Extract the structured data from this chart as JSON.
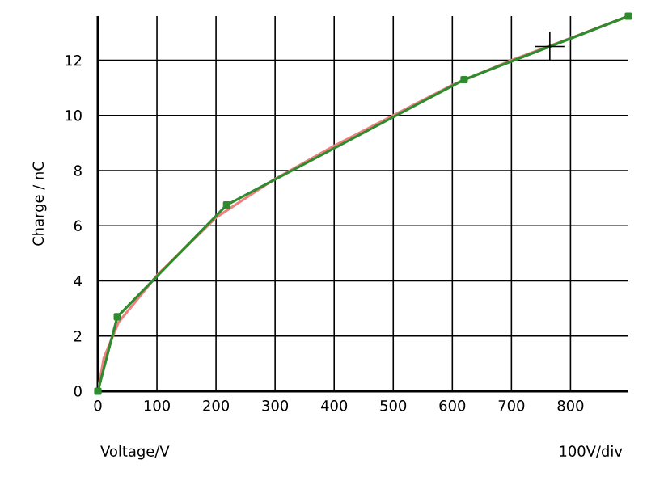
{
  "chart_data": {
    "type": "line",
    "xlabel": "Voltage/V",
    "ylabel": "Charge / nC",
    "annotations": [
      "100V/div"
    ],
    "xlim": [
      0,
      898
    ],
    "ylim": [
      0,
      13.6
    ],
    "xticks": [
      0,
      100,
      200,
      300,
      400,
      500,
      600,
      700,
      800
    ],
    "yticks": [
      0,
      2,
      4,
      6,
      8,
      10,
      12
    ],
    "grid": true,
    "series": [
      {
        "color": "#f08080",
        "marker": "none",
        "x": [
          0,
          10,
          35,
          100,
          200,
          300,
          400,
          500,
          600,
          700,
          800,
          898
        ],
        "values": [
          0,
          1.2,
          2.5,
          4.2,
          6.3,
          7.7,
          8.9,
          10.0,
          11.1,
          12.0,
          12.8,
          13.6
        ]
      },
      {
        "color": "#2e8b2e",
        "marker": "square",
        "x": [
          0,
          33,
          218,
          620,
          898
        ],
        "values": [
          0,
          2.7,
          6.75,
          11.3,
          13.6
        ]
      },
      {
        "type": "scatter",
        "color": "#000000",
        "marker": "cross",
        "x": [
          765
        ],
        "values": [
          12.5
        ]
      }
    ]
  }
}
